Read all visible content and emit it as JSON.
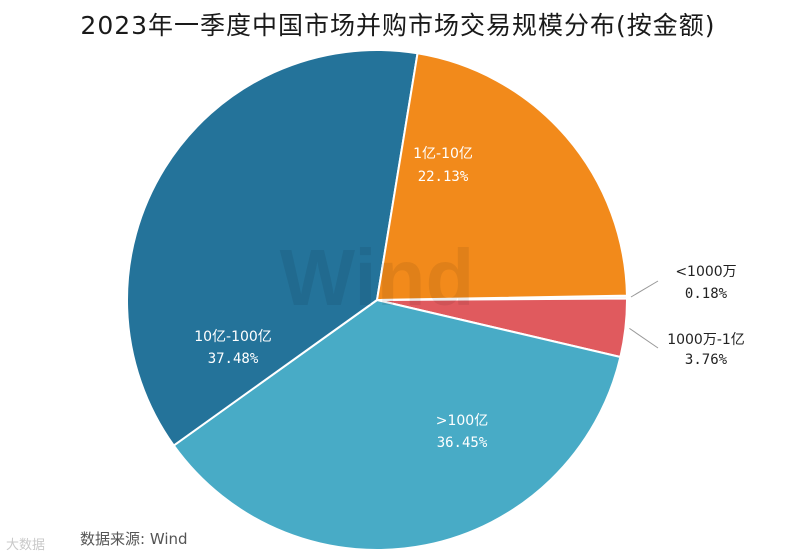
{
  "chart_data": {
    "type": "pie",
    "title": "2023年一季度中国市场并购市场交易规模分布(按金额)",
    "slices": [
      {
        "label": "<1000万",
        "value": 0.18,
        "value_label": "0.18%",
        "color": "#f0f0f0"
      },
      {
        "label": "1000万-1亿",
        "value": 3.76,
        "value_label": "3.76%",
        "color": "#e05a5e"
      },
      {
        "label": ">100亿",
        "value": 36.45,
        "value_label": "36.45%",
        "color": "#48abc6"
      },
      {
        "label": "10亿-100亿",
        "value": 37.48,
        "value_label": "37.48%",
        "color": "#24739a"
      },
      {
        "label": "1亿-10亿",
        "value": 22.13,
        "value_label": "22.13%",
        "color": "#f28a1b"
      }
    ]
  },
  "source": "数据来源: Wind",
  "watermark": "Wind",
  "watermark_corner": "大数据"
}
